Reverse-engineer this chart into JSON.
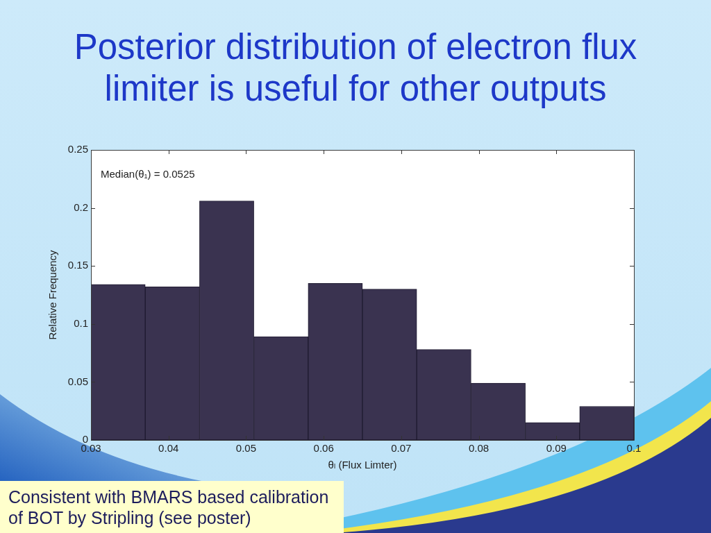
{
  "chart_data": {
    "type": "histogram",
    "title": "Posterior distribution of electron flux limiter is useful for other outputs",
    "xlabel": "θₗ (Flux Limter)",
    "ylabel": "Relative Frequency",
    "annotations": [
      "Median(θ₁) = 0.0525",
      "Consistent with BMARS based calibration of BOT by Stripling (see poster)"
    ],
    "bins": [
      0.03,
      0.037,
      0.044,
      0.051,
      0.058,
      0.065,
      0.072,
      0.079,
      0.086,
      0.093,
      0.1
    ],
    "values": [
      0.134,
      0.132,
      0.206,
      0.089,
      0.135,
      0.13,
      0.078,
      0.049,
      0.015,
      0.029
    ],
    "color": "#3a3350",
    "xlim": [
      0.03,
      0.1
    ],
    "xticks": [
      0.03,
      0.04,
      0.05,
      0.06,
      0.07,
      0.08,
      0.09,
      0.1
    ],
    "ylim": [
      0,
      0.25
    ],
    "yticks": [
      0,
      0.05,
      0.1,
      0.15,
      0.2,
      0.25
    ]
  }
}
